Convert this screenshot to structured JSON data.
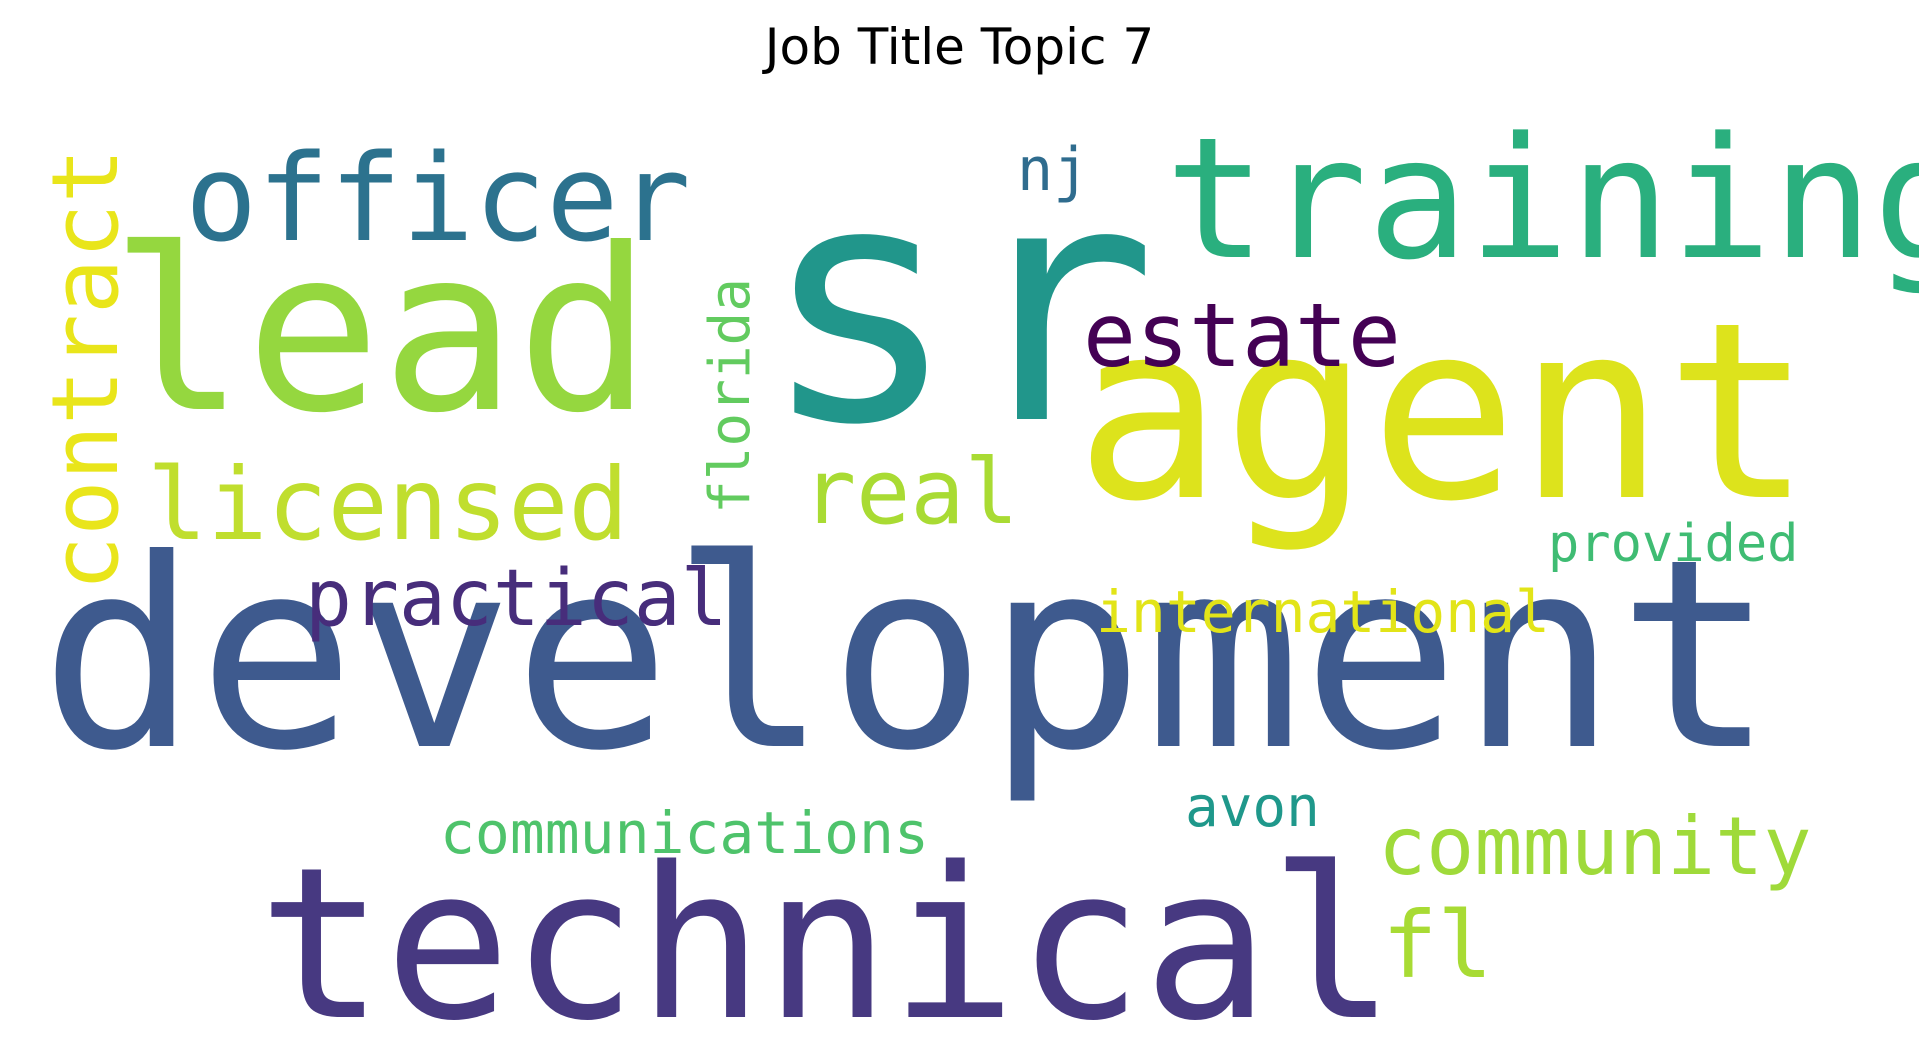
{
  "title": "Job Title Topic 7",
  "words": [
    {
      "text": "sr",
      "color": "#21968b"
    },
    {
      "text": "development",
      "color": "#3e5a8e"
    },
    {
      "text": "lead",
      "color": "#95d73f"
    },
    {
      "text": "agent",
      "color": "#dde31c"
    },
    {
      "text": "training",
      "color": "#2aaf7e"
    },
    {
      "text": "technical",
      "color": "#473981"
    },
    {
      "text": "officer",
      "color": "#2c728e"
    },
    {
      "text": "estate",
      "color": "#440154"
    },
    {
      "text": "licensed",
      "color": "#c0de2e"
    },
    {
      "text": "real",
      "color": "#a9db33"
    },
    {
      "text": "contract",
      "color": "#e9e51a"
    },
    {
      "text": "practical",
      "color": "#472d7b"
    },
    {
      "text": "community",
      "color": "#9fda3a"
    },
    {
      "text": "communications",
      "color": "#4ec36b"
    },
    {
      "text": "international",
      "color": "#e2e418"
    },
    {
      "text": "fl",
      "color": "#a8db34"
    },
    {
      "text": "nj",
      "color": "#2f6c8e"
    },
    {
      "text": "florida",
      "color": "#62cb5f"
    },
    {
      "text": "avon",
      "color": "#1f988b"
    },
    {
      "text": "provided",
      "color": "#3fbc73"
    }
  ]
}
